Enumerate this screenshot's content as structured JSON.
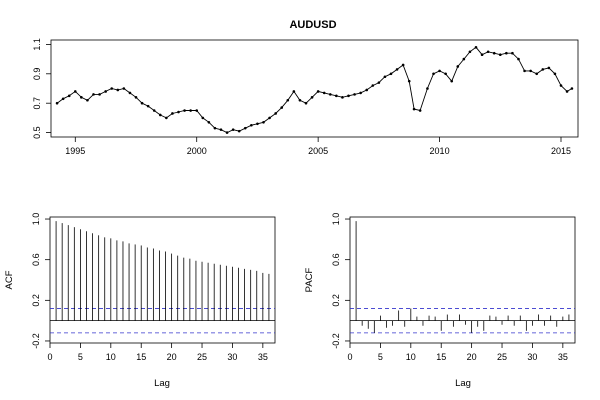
{
  "chart_data": [
    {
      "type": "line",
      "title": "AUDUSD",
      "xlabel": "",
      "ylabel": "",
      "xlim": [
        1994.0,
        2015.7
      ],
      "ylim": [
        0.47,
        1.13
      ],
      "x_ticks": [
        1995,
        2000,
        2005,
        2010,
        2015
      ],
      "x_tick_labels": [
        "1995",
        "2000",
        "2005",
        "2010",
        "2015"
      ],
      "y_ticks": [
        0.5,
        0.7,
        0.9,
        1.1
      ],
      "y_tick_labels": [
        "0.5",
        "0.7",
        "0.9",
        "1.1"
      ],
      "grid": false,
      "markers": true,
      "x": [
        1994.25,
        1994.5,
        1994.75,
        1995.0,
        1995.25,
        1995.5,
        1995.75,
        1996.0,
        1996.25,
        1996.5,
        1996.75,
        1997.0,
        1997.25,
        1997.5,
        1997.75,
        1998.0,
        1998.25,
        1998.5,
        1998.75,
        1999.0,
        1999.25,
        1999.5,
        1999.75,
        2000.0,
        2000.25,
        2000.5,
        2000.75,
        2001.0,
        2001.25,
        2001.5,
        2001.75,
        2002.0,
        2002.25,
        2002.5,
        2002.75,
        2003.0,
        2003.25,
        2003.5,
        2003.75,
        2004.0,
        2004.25,
        2004.5,
        2004.75,
        2005.0,
        2005.25,
        2005.5,
        2005.75,
        2006.0,
        2006.25,
        2006.5,
        2006.75,
        2007.0,
        2007.25,
        2007.5,
        2007.75,
        2008.0,
        2008.25,
        2008.5,
        2008.75,
        2008.95,
        2009.2,
        2009.5,
        2009.75,
        2010.0,
        2010.25,
        2010.5,
        2010.75,
        2011.0,
        2011.25,
        2011.5,
        2011.75,
        2012.0,
        2012.25,
        2012.5,
        2012.75,
        2013.0,
        2013.25,
        2013.5,
        2013.75,
        2014.0,
        2014.25,
        2014.5,
        2014.75,
        2015.0,
        2015.25,
        2015.45
      ],
      "values": [
        0.7,
        0.73,
        0.75,
        0.78,
        0.74,
        0.72,
        0.76,
        0.76,
        0.78,
        0.8,
        0.79,
        0.8,
        0.77,
        0.74,
        0.7,
        0.68,
        0.65,
        0.62,
        0.6,
        0.63,
        0.64,
        0.65,
        0.65,
        0.65,
        0.6,
        0.57,
        0.53,
        0.52,
        0.5,
        0.52,
        0.51,
        0.53,
        0.55,
        0.56,
        0.57,
        0.6,
        0.63,
        0.67,
        0.72,
        0.78,
        0.72,
        0.7,
        0.74,
        0.78,
        0.77,
        0.76,
        0.75,
        0.74,
        0.75,
        0.76,
        0.77,
        0.79,
        0.82,
        0.84,
        0.88,
        0.9,
        0.93,
        0.96,
        0.85,
        0.66,
        0.65,
        0.8,
        0.9,
        0.92,
        0.9,
        0.85,
        0.95,
        1.0,
        1.05,
        1.08,
        1.03,
        1.05,
        1.04,
        1.03,
        1.04,
        1.04,
        1.0,
        0.92,
        0.92,
        0.9,
        0.93,
        0.94,
        0.9,
        0.82,
        0.78,
        0.8
      ]
    },
    {
      "type": "bar",
      "title": "",
      "xlabel": "Lag",
      "ylabel": "ACF",
      "xlim": [
        0,
        37
      ],
      "ylim": [
        -0.22,
        1.02
      ],
      "x_ticks": [
        0,
        5,
        10,
        15,
        20,
        25,
        30,
        35
      ],
      "x_tick_labels": [
        "0",
        "5",
        "10",
        "15",
        "20",
        "25",
        "30",
        "35"
      ],
      "y_ticks": [
        -0.2,
        0.2,
        0.6,
        1.0
      ],
      "y_tick_labels": [
        "-0.2",
        "0.2",
        "0.6",
        "1.0"
      ],
      "confidence_bound": 0.12,
      "x": [
        1,
        2,
        3,
        4,
        5,
        6,
        7,
        8,
        9,
        10,
        11,
        12,
        13,
        14,
        15,
        16,
        17,
        18,
        19,
        20,
        21,
        22,
        23,
        24,
        25,
        26,
        27,
        28,
        29,
        30,
        31,
        32,
        33,
        34,
        35,
        36
      ],
      "values": [
        0.98,
        0.96,
        0.94,
        0.92,
        0.9,
        0.88,
        0.86,
        0.84,
        0.82,
        0.81,
        0.79,
        0.78,
        0.76,
        0.75,
        0.74,
        0.72,
        0.71,
        0.69,
        0.68,
        0.66,
        0.64,
        0.62,
        0.61,
        0.59,
        0.58,
        0.57,
        0.56,
        0.55,
        0.54,
        0.53,
        0.52,
        0.51,
        0.5,
        0.49,
        0.47,
        0.46
      ]
    },
    {
      "type": "bar",
      "title": "",
      "xlabel": "Lag",
      "ylabel": "PACF",
      "xlim": [
        0,
        37
      ],
      "ylim": [
        -0.22,
        1.02
      ],
      "x_ticks": [
        0,
        5,
        10,
        15,
        20,
        25,
        30,
        35
      ],
      "x_tick_labels": [
        "0",
        "5",
        "10",
        "15",
        "20",
        "25",
        "30",
        "35"
      ],
      "y_ticks": [
        -0.2,
        0.2,
        0.6,
        1.0
      ],
      "y_tick_labels": [
        "-0.2",
        "0.2",
        "0.6",
        "1.0"
      ],
      "confidence_bound": 0.12,
      "x": [
        1,
        2,
        3,
        4,
        5,
        6,
        7,
        8,
        9,
        10,
        11,
        12,
        13,
        14,
        15,
        16,
        17,
        18,
        19,
        20,
        21,
        22,
        23,
        24,
        25,
        26,
        27,
        28,
        29,
        30,
        31,
        32,
        33,
        34,
        35,
        36
      ],
      "values": [
        0.98,
        -0.05,
        -0.08,
        -0.12,
        0.05,
        -0.07,
        -0.05,
        0.1,
        -0.06,
        0.12,
        0.04,
        -0.05,
        0.05,
        0.04,
        -0.1,
        0.06,
        -0.06,
        0.06,
        -0.04,
        -0.12,
        -0.06,
        -0.1,
        0.05,
        0.04,
        -0.04,
        0.05,
        -0.05,
        0.05,
        -0.1,
        -0.05,
        0.06,
        -0.05,
        0.05,
        -0.06,
        0.04,
        0.06
      ]
    }
  ]
}
